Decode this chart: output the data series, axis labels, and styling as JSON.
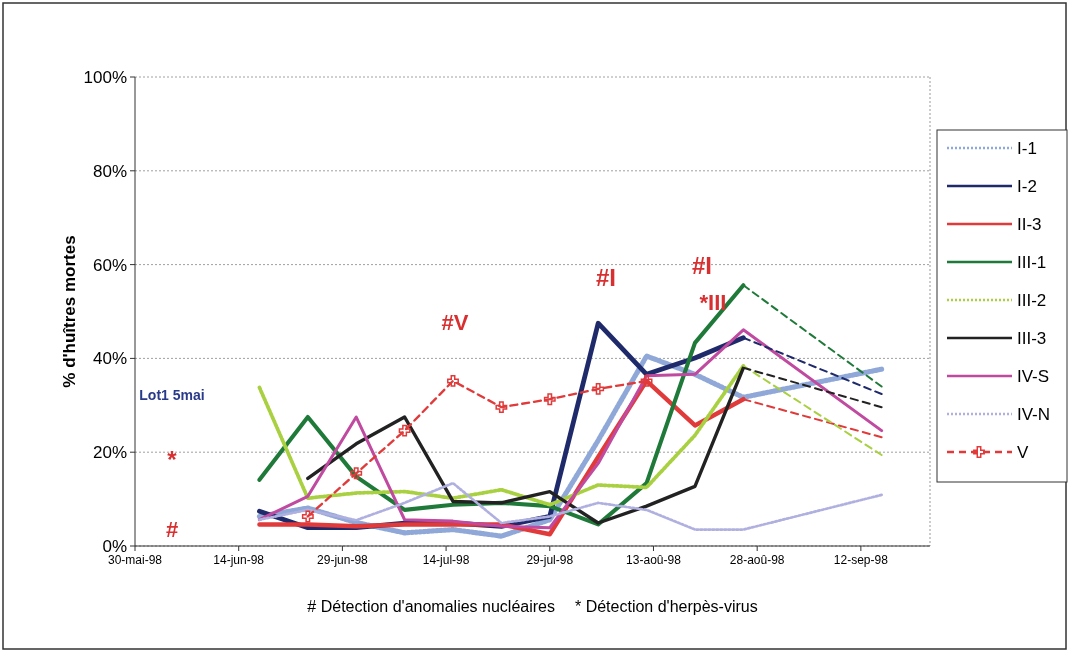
{
  "chart_data": {
    "type": "line",
    "ylabel": "% d'huîtres mortes",
    "x": [
      "1998-06-17",
      "1998-06-24",
      "1998-07-01",
      "1998-07-08",
      "1998-07-15",
      "1998-07-22",
      "1998-07-29",
      "1998-08-05",
      "1998-08-12",
      "1998-08-19",
      "1998-08-26",
      "1998-09-15"
    ],
    "xlim": [
      "1998-05-30",
      "1998-09-22"
    ],
    "xticks": [
      {
        "value": "1998-05-30",
        "label": "30-mai-98"
      },
      {
        "value": "1998-06-14",
        "label": "14-jun-98"
      },
      {
        "value": "1998-06-29",
        "label": "29-jun-98"
      },
      {
        "value": "1998-07-14",
        "label": "14-jul-98"
      },
      {
        "value": "1998-07-29",
        "label": "29-jul-98"
      },
      {
        "value": "1998-08-13",
        "label": "13-aoû-98"
      },
      {
        "value": "1998-08-28",
        "label": "28-aoû-98"
      },
      {
        "value": "1998-09-12",
        "label": "12-sep-98"
      }
    ],
    "ylim": [
      0,
      100
    ],
    "yticks": [
      {
        "value": 0,
        "label": "0%"
      },
      {
        "value": 20,
        "label": "20%"
      },
      {
        "value": 40,
        "label": "40%"
      },
      {
        "value": 60,
        "label": "60%"
      },
      {
        "value": 80,
        "label": "80%"
      },
      {
        "value": 100,
        "label": "100%"
      }
    ],
    "grid": "y",
    "legend": "right",
    "line_style": "solid",
    "marker": "none",
    "series": [
      {
        "name": "I-1",
        "color": "#8fa8d8",
        "line_style": "dotted",
        "values": [
          6.3,
          8.1,
          5,
          2.8,
          3.5,
          2.1,
          5.6,
          22.5,
          40.5,
          36.6,
          31.7,
          37.7
        ]
      },
      {
        "name": "I-2",
        "color": "#1f2a6b",
        "values": [
          7.4,
          3.9,
          3.9,
          4.9,
          4.9,
          4.2,
          6.3,
          47.5,
          36.6,
          40.1,
          44.4,
          null
        ]
      },
      {
        "name": "II-3",
        "color": "#e03a3a",
        "values": [
          4.6,
          4.6,
          4.2,
          4.6,
          4.6,
          4.6,
          2.5,
          19,
          35.2,
          25.7,
          31.3,
          null
        ]
      },
      {
        "name": "III-1",
        "color": "#1f7a3a",
        "values": [
          14.1,
          27.5,
          14.8,
          7.7,
          8.8,
          9.2,
          8.5,
          4.6,
          13.4,
          43.3,
          55.6,
          null
        ]
      },
      {
        "name": "III-2",
        "color": "#a8d040",
        "line_style": "dotted",
        "values": [
          33.8,
          10.2,
          11.3,
          11.6,
          10.2,
          12,
          8.8,
          13,
          12.5,
          23.6,
          38.4,
          null
        ]
      },
      {
        "name": "III-3",
        "color": "#222222",
        "values": [
          null,
          14.4,
          21.8,
          27.5,
          9.5,
          9.2,
          11.6,
          4.9,
          8.5,
          12.7,
          38,
          null
        ]
      },
      {
        "name": "IV-S",
        "color": "#c04aa0",
        "values": [
          5.6,
          10.6,
          27.5,
          5.6,
          5.3,
          4.2,
          3.9,
          17.6,
          36.3,
          36.6,
          46.1,
          24.6
        ]
      },
      {
        "name": "IV-N",
        "color": "#b0b0e0",
        "line_style": "dotted",
        "values": [
          5.6,
          7.7,
          5.5,
          9.2,
          13.4,
          4.9,
          6.3,
          9.2,
          7.7,
          3.5,
          3.5,
          10.9
        ]
      },
      {
        "name": "V",
        "color": "#e03a3a",
        "line_style": "dashed",
        "marker": "cross",
        "values": [
          null,
          6.3,
          15.5,
          24.6,
          35.2,
          29.6,
          31.3,
          33.5,
          35.2,
          null,
          null,
          null
        ]
      },
      {
        "color": "#1f2a6b",
        "line_style": "dashed",
        "x": [
          "1998-08-26",
          "1998-09-15"
        ],
        "values": [
          44.4,
          32.4
        ]
      },
      {
        "color": "#e03a3a",
        "line_style": "dashed",
        "x": [
          "1998-08-26",
          "1998-09-15"
        ],
        "values": [
          31.3,
          23.2
        ]
      },
      {
        "color": "#1f7a3a",
        "line_style": "dashed",
        "x": [
          "1998-08-26",
          "1998-09-15"
        ],
        "values": [
          55.6,
          34
        ]
      },
      {
        "color": "#a8d040",
        "line_style": "dashed",
        "x": [
          "1998-08-26",
          "1998-09-15"
        ],
        "values": [
          38.4,
          19.4
        ]
      },
      {
        "color": "#222222",
        "line_style": "dashed",
        "x": [
          "1998-08-26",
          "1998-09-15"
        ],
        "values": [
          38,
          29.6
        ]
      }
    ],
    "annotations": [
      "Lot1 5mai",
      "*",
      "#",
      "#V",
      "#I",
      "#I",
      "*III",
      "# Détection d'anomalies nucléaires",
      "* Détection d'herpès-virus"
    ]
  }
}
